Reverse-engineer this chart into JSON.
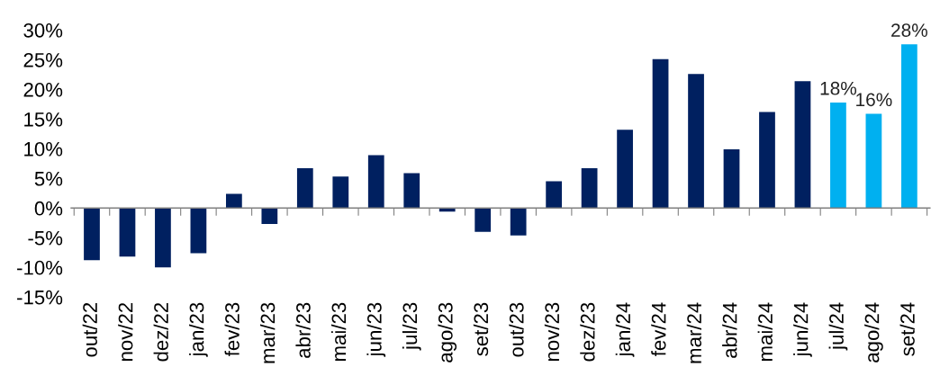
{
  "chart_data": {
    "type": "bar",
    "categories": [
      "out/22",
      "nov/22",
      "dez/22",
      "jan/23",
      "fev/23",
      "mar/23",
      "abr/23",
      "mai/23",
      "jun/23",
      "jul/23",
      "ago/23",
      "set/23",
      "out/23",
      "nov/23",
      "dez/23",
      "jan/24",
      "fev/24",
      "mar/24",
      "abr/24",
      "mai/24",
      "jun/24",
      "jul/24",
      "ago/24",
      "set/24"
    ],
    "values": [
      -8.8,
      -8.2,
      -10,
      -7.6,
      2.4,
      -2.7,
      6.7,
      5.3,
      8.9,
      5.9,
      -0.6,
      -4.0,
      -4.6,
      4.5,
      6.7,
      13.2,
      25.1,
      22.6,
      9.9,
      16.2,
      21.4,
      17.8,
      15.9,
      27.6
    ],
    "colors": [
      "#002060",
      "#002060",
      "#002060",
      "#002060",
      "#002060",
      "#002060",
      "#002060",
      "#002060",
      "#002060",
      "#002060",
      "#002060",
      "#002060",
      "#002060",
      "#002060",
      "#002060",
      "#002060",
      "#002060",
      "#002060",
      "#002060",
      "#002060",
      "#002060",
      "#00b0f0",
      "#00b0f0",
      "#00b0f0"
    ],
    "value_labels": [
      null,
      null,
      null,
      null,
      null,
      null,
      null,
      null,
      null,
      null,
      null,
      null,
      null,
      null,
      null,
      null,
      null,
      null,
      null,
      null,
      null,
      "18%",
      "16%",
      "28%"
    ],
    "ylim": [
      -15,
      30
    ],
    "yticks": [
      {
        "value": -15,
        "label": "-15%"
      },
      {
        "value": -10,
        "label": "-10%"
      },
      {
        "value": -5,
        "label": "-5%"
      },
      {
        "value": 0,
        "label": "0%"
      },
      {
        "value": 5,
        "label": "5%"
      },
      {
        "value": 10,
        "label": "10%"
      },
      {
        "value": 15,
        "label": "15%"
      },
      {
        "value": 20,
        "label": "20%"
      },
      {
        "value": 25,
        "label": "25%"
      },
      {
        "value": 30,
        "label": "30%"
      }
    ],
    "ref_lines": [
      {
        "axis": "y",
        "value": 0,
        "color": "#808080"
      }
    ],
    "grid": false,
    "legend": false
  }
}
